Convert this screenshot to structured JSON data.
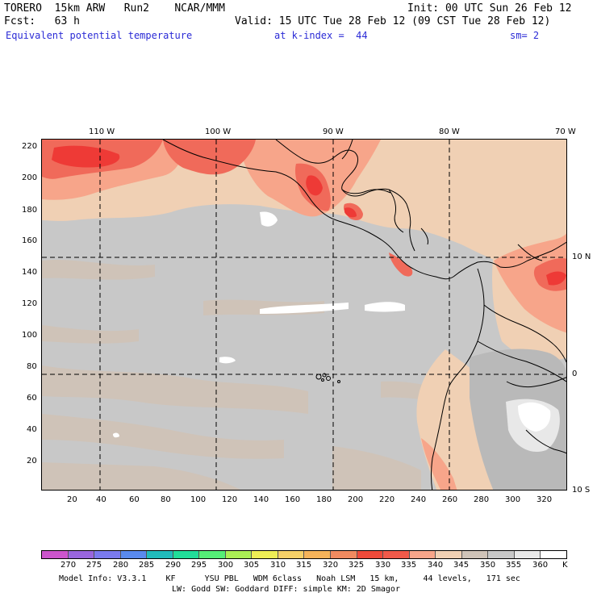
{
  "header": {
    "line1_left": "TORERO  15km ARW   Run2    NCAR/MMM",
    "line1_right": "Init: 00 UTC Sun 26 Feb 12",
    "line2_left": "Fcst:   63 h",
    "line2_right": "Valid: 15 UTC Tue 28 Feb 12 (09 CST Tue 28 Feb 12)",
    "line3_field": "Equivalent potential temperature",
    "line3_level": "at k-index =  44",
    "line3_smooth": "sm= 2"
  },
  "map": {
    "top_lon_labels": [
      "110 W",
      "100 W",
      "90 W",
      "80 W",
      "70 W"
    ],
    "right_lat_labels": [
      "10 N",
      "0",
      "10 S"
    ],
    "left_y_ticks": [
      "220",
      "200",
      "180",
      "160",
      "140",
      "120",
      "100",
      "80",
      "60",
      "40",
      "20"
    ],
    "bottom_x_ticks": [
      "20",
      "40",
      "60",
      "80",
      "100",
      "120",
      "140",
      "160",
      "180",
      "200",
      "220",
      "240",
      "260",
      "280",
      "300",
      "320"
    ],
    "grid_style": "dashed",
    "colors": {
      "background_345": "#c8c8c8",
      "tan_340": "#f0d0b4",
      "salmon_335": "#f7a58a",
      "red_330": "#f06a5a",
      "bright_red_325": "#ee3a36",
      "taupe_350": "#cfc3b8",
      "light_355": "#e8e8e8",
      "white_360": "#ffffff",
      "coast": "#000000"
    }
  },
  "colorbar": {
    "levels": [
      "270",
      "275",
      "280",
      "285",
      "290",
      "295",
      "300",
      "305",
      "310",
      "315",
      "320",
      "325",
      "330",
      "335",
      "340",
      "345",
      "350",
      "355",
      "360"
    ],
    "unit": "K",
    "colors": [
      "#cc55cc",
      "#9966dd",
      "#7a7aee",
      "#5a8aee",
      "#22bbbb",
      "#22dd99",
      "#55ee77",
      "#aaee55",
      "#eeee55",
      "#f5d068",
      "#f5b35a",
      "#f08a60",
      "#ee4a3a",
      "#f05a4a",
      "#f7a58a",
      "#f0d0b4",
      "#cfc3b8",
      "#c8c8c8",
      "#e8e8e8",
      "#ffffff"
    ]
  },
  "footer": {
    "line1": "Model Info: V3.3.1    KF      YSU PBL   WDM 6class   Noah LSM   15 km,     44 levels,   171 sec",
    "line2": "LW: Godd SW: Goddard DIFF: simple KM: 2D Smagor"
  }
}
